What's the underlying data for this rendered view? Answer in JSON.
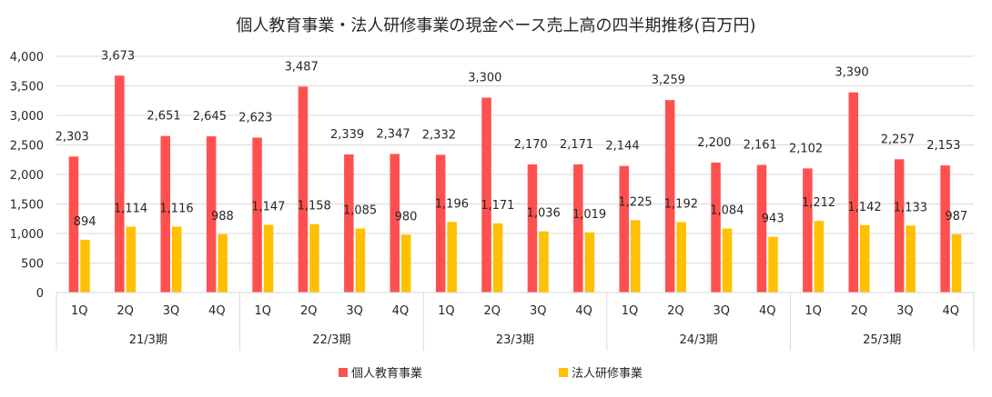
{
  "chart_data": {
    "type": "bar",
    "title": "個人教育事業・法人研修事業の現金ベース売上高の四半期推移(百万円)",
    "xlabel": "",
    "ylabel": "",
    "ylim": [
      0,
      4000
    ],
    "yticks": [
      0,
      500,
      1000,
      1500,
      2000,
      2500,
      3000,
      3500,
      4000
    ],
    "ytick_labels": [
      "0",
      "500",
      "1,000",
      "1,500",
      "2,000",
      "2,500",
      "3,000",
      "3,500",
      "4,000"
    ],
    "grid": true,
    "legend_position": "bottom",
    "groups": [
      {
        "label": "21/3期",
        "categories": [
          "1Q",
          "2Q",
          "3Q",
          "4Q"
        ]
      },
      {
        "label": "22/3期",
        "categories": [
          "1Q",
          "2Q",
          "3Q",
          "4Q"
        ]
      },
      {
        "label": "23/3期",
        "categories": [
          "1Q",
          "2Q",
          "3Q",
          "4Q"
        ]
      },
      {
        "label": "24/3期",
        "categories": [
          "1Q",
          "2Q",
          "3Q",
          "4Q"
        ]
      },
      {
        "label": "25/3期",
        "categories": [
          "1Q",
          "2Q",
          "3Q",
          "4Q"
        ]
      }
    ],
    "series": [
      {
        "name": "個人教育事業",
        "color": "#ff5050",
        "values": [
          2303,
          3673,
          2651,
          2645,
          2623,
          3487,
          2339,
          2347,
          2332,
          3300,
          2170,
          2171,
          2144,
          3259,
          2200,
          2161,
          2102,
          3390,
          2257,
          2153
        ],
        "labels": [
          "2,303",
          "3,673",
          "2,651",
          "2,645",
          "2,623",
          "3,487",
          "2,339",
          "2,347",
          "2,332",
          "3,300",
          "2,170",
          "2,171",
          "2,144",
          "3,259",
          "2,200",
          "2,161",
          "2,102",
          "3,390",
          "2,257",
          "2,153"
        ]
      },
      {
        "name": "法人研修事業",
        "color": "#ffc000",
        "values": [
          894,
          1114,
          1116,
          988,
          1147,
          1158,
          1085,
          980,
          1196,
          1171,
          1036,
          1019,
          1225,
          1192,
          1084,
          943,
          1212,
          1142,
          1133,
          987
        ],
        "labels": [
          "894",
          "1,114",
          "1,116",
          "988",
          "1,147",
          "1,158",
          "1,085",
          "980",
          "1,196",
          "1,171",
          "1,036",
          "1,019",
          "1,225",
          "1,192",
          "1,084",
          "943",
          "1,212",
          "1,142",
          "1,133",
          "987"
        ]
      }
    ]
  }
}
